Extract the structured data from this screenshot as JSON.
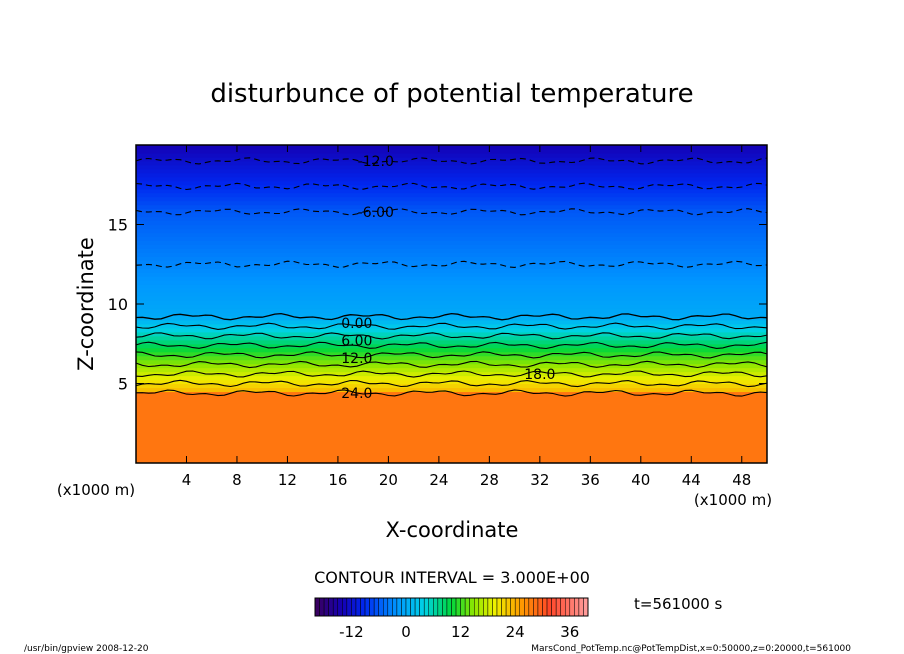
{
  "chart_data": {
    "type": "contour",
    "title": "disturbunce of potential temperature",
    "xlabel": "X-coordinate",
    "ylabel": "Z-coordinate",
    "x_unit": "(x1000 m)",
    "x_unit_right": "(x1000 m)",
    "xlim": [
      0,
      50
    ],
    "ylim": [
      0,
      20
    ],
    "x_ticks": [
      "4",
      "8",
      "12",
      "16",
      "20",
      "24",
      "28",
      "32",
      "36",
      "40",
      "44",
      "48"
    ],
    "x_tick_values": [
      4,
      8,
      12,
      16,
      20,
      24,
      28,
      32,
      36,
      40,
      44,
      48
    ],
    "y_ticks": [
      "5",
      "10",
      "15"
    ],
    "y_tick_values": [
      5,
      10,
      15
    ],
    "contour_interval_text": "CONTOUR INTERVAL = 3.000E+00",
    "contour_interval": 3.0,
    "contour_labels": [
      {
        "text": "-12.0",
        "x": 19,
        "z": 19.0
      },
      {
        "text": "-6.00",
        "x": 19,
        "z": 15.8
      },
      {
        "text": "0.00",
        "x": 17.5,
        "z": 8.8
      },
      {
        "text": "6.00",
        "x": 17.5,
        "z": 7.7
      },
      {
        "text": "12.0",
        "x": 17.5,
        "z": 6.6
      },
      {
        "text": "18.0",
        "x": 32,
        "z": 5.6
      },
      {
        "text": "24.0",
        "x": 17.5,
        "z": 4.4
      }
    ],
    "colorbar": {
      "ticks": [
        "-12",
        "0",
        "12",
        "24",
        "36"
      ],
      "tick_values": [
        -12,
        0,
        12,
        24,
        36
      ],
      "range": [
        -20,
        40
      ]
    },
    "time_label": "t=561000 s",
    "footer_left": "/usr/bin/gpview   2008-12-20",
    "footer_right": "MarsCond_PotTemp.nc@PotTempDist,x=0:50000,z=0:20000,t=561000"
  }
}
